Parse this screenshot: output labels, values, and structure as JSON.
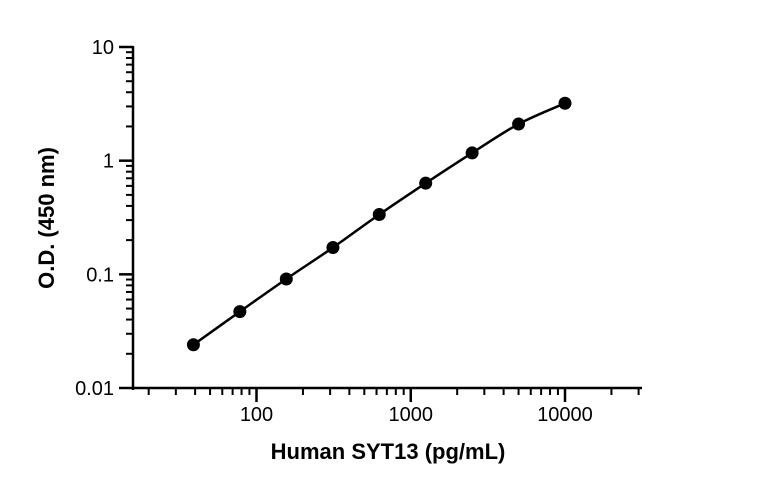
{
  "chart_data": {
    "type": "scatter",
    "title": "",
    "xlabel": "Human SYT13 (pg/mL)",
    "ylabel": "O.D. (450 nm)",
    "xscale": "log",
    "yscale": "log",
    "xlim": [
      20,
      30000
    ],
    "ylim": [
      0.01,
      10
    ],
    "x_tick_labels": [
      "100",
      "1000",
      "10000"
    ],
    "x_tick_values": [
      100,
      1000,
      10000
    ],
    "y_tick_labels": [
      "0.01",
      "0.1",
      "1",
      "10"
    ],
    "y_tick_values": [
      0.01,
      0.1,
      1,
      10
    ],
    "grid": false,
    "legend": "none",
    "series": [
      {
        "x": [
          39,
          78,
          156,
          313,
          625,
          1250,
          2500,
          5000,
          10000
        ],
        "y": [
          0.024,
          0.047,
          0.091,
          0.172,
          0.336,
          0.634,
          1.17,
          2.1,
          3.2
        ],
        "color": "#000000",
        "marker": "circle",
        "fit_line": true
      }
    ]
  }
}
